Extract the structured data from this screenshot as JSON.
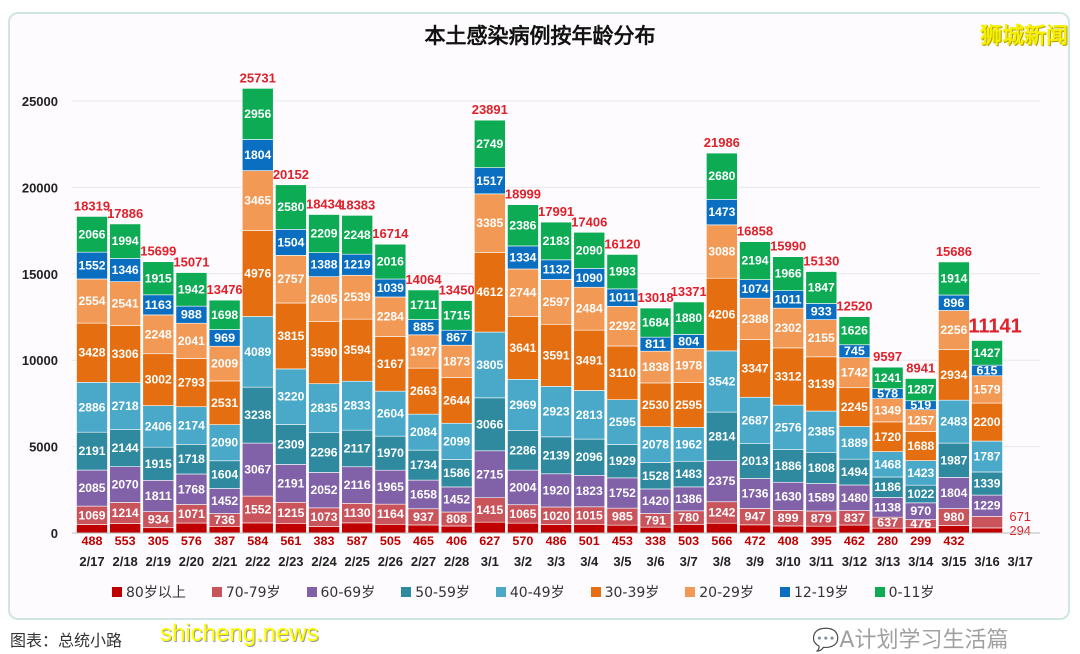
{
  "chart_data": {
    "type": "bar",
    "stacked": true,
    "title": "本土感染病例按年龄分布",
    "xlabel": "",
    "ylabel": "",
    "ylim": [
      0,
      25000
    ],
    "yticks": [
      "0",
      "5000",
      "10000",
      "15000",
      "20000",
      "25000"
    ],
    "grid": true,
    "legend_position": "bottom",
    "categories": [
      "2/17",
      "2/18",
      "2/19",
      "2/20",
      "2/21",
      "2/22",
      "2/23",
      "2/24",
      "2/25",
      "2/26",
      "2/27",
      "2/28",
      "3/1",
      "3/2",
      "3/3",
      "3/4",
      "3/5",
      "3/6",
      "3/7",
      "3/8",
      "3/9",
      "3/10",
      "3/11",
      "3/12",
      "3/13",
      "3/14",
      "3/15",
      "3/16",
      "3/17"
    ],
    "totals": [
      "18319",
      "17886",
      "15699",
      "15071",
      "13476",
      "25731",
      "20152",
      "18434",
      "18383",
      "16714",
      "14064",
      "13450",
      "23891",
      "18999",
      "17991",
      "17406",
      "16120",
      "13018",
      "13371",
      "21986",
      "16858",
      "15990",
      "15130",
      "12520",
      "9597",
      "8941",
      "15686",
      "11141",
      ""
    ],
    "series": [
      {
        "name": "80岁以上",
        "color": "#c00000",
        "values": [
          488,
          553,
          305,
          576,
          387,
          584,
          561,
          383,
          587,
          505,
          465,
          406,
          627,
          570,
          486,
          501,
          453,
          338,
          503,
          566,
          472,
          408,
          395,
          462,
          280,
          299,
          432,
          294,
          0
        ]
      },
      {
        "name": "70-79岁",
        "color": "#c9545c",
        "values": [
          1069,
          1214,
          934,
          1071,
          736,
          1552,
          1215,
          1073,
          1130,
          1164,
          937,
          808,
          1415,
          1065,
          1020,
          1015,
          985,
          791,
          780,
          1242,
          947,
          899,
          879,
          837,
          637,
          476,
          980,
          671,
          0
        ]
      },
      {
        "name": "60-69岁",
        "color": "#8161a8",
        "values": [
          2085,
          2070,
          1811,
          1768,
          1452,
          3067,
          2191,
          2052,
          2116,
          1965,
          1658,
          1452,
          2715,
          2004,
          1920,
          1823,
          1752,
          1420,
          1386,
          2375,
          1736,
          1630,
          1589,
          1480,
          1138,
          970,
          1804,
          1229,
          0
        ]
      },
      {
        "name": "50-59岁",
        "color": "#2f8aa0",
        "values": [
          2191,
          2144,
          1915,
          1718,
          1604,
          3238,
          2309,
          2296,
          2117,
          1970,
          1734,
          1586,
          3066,
          2286,
          2139,
          2096,
          1929,
          1528,
          1483,
          2814,
          2013,
          1886,
          1808,
          1494,
          1186,
          1022,
          1987,
          1339,
          0
        ]
      },
      {
        "name": "40-49岁",
        "color": "#4aa9c9",
        "values": [
          2886,
          2718,
          2406,
          2174,
          2090,
          4089,
          3220,
          2835,
          2833,
          2604,
          2084,
          2099,
          3805,
          2969,
          2923,
          2813,
          2595,
          2078,
          1962,
          3542,
          2687,
          2576,
          2385,
          1889,
          1468,
          1423,
          2483,
          1787,
          0
        ]
      },
      {
        "name": "30-39岁",
        "color": "#e56f10",
        "values": [
          3428,
          3306,
          3002,
          2793,
          2531,
          4976,
          3815,
          3590,
          3594,
          3167,
          2663,
          2644,
          4612,
          3641,
          3591,
          3491,
          3110,
          2530,
          2595,
          4206,
          3347,
          3312,
          3139,
          2245,
          1720,
          1688,
          2934,
          2200,
          0
        ]
      },
      {
        "name": "20-29岁",
        "color": "#f29a55",
        "values": [
          2554,
          2541,
          2248,
          2041,
          2009,
          3465,
          2757,
          2605,
          2539,
          2284,
          1927,
          1873,
          3385,
          2744,
          2597,
          2484,
          2292,
          1838,
          1978,
          3088,
          2388,
          2302,
          2155,
          1742,
          1349,
          1257,
          2256,
          1579,
          0
        ]
      },
      {
        "name": "12-19岁",
        "color": "#0a6fc0",
        "values": [
          1552,
          1346,
          1163,
          988,
          969,
          1804,
          1504,
          1388,
          1219,
          1039,
          885,
          867,
          1517,
          1334,
          1132,
          1090,
          1011,
          811,
          804,
          1473,
          1074,
          1011,
          933,
          745,
          578,
          519,
          896,
          615,
          0
        ]
      },
      {
        "name": "0-11岁",
        "color": "#0eab55",
        "values": [
          2066,
          1994,
          1915,
          1942,
          1698,
          2956,
          2580,
          2209,
          2248,
          2016,
          1711,
          1715,
          2749,
          2386,
          2183,
          2090,
          1993,
          1684,
          1880,
          2680,
          2194,
          1966,
          1847,
          1626,
          1241,
          1287,
          1914,
          1427,
          0
        ]
      }
    ],
    "colors": {
      "total_label": "#e0202a",
      "segment_label": "#ffffff"
    }
  },
  "branding": {
    "logo_text": "狮城新闻",
    "site": "shicheng.news",
    "source": "图表：总统小路",
    "watermark": "A计划学习生活篇"
  }
}
